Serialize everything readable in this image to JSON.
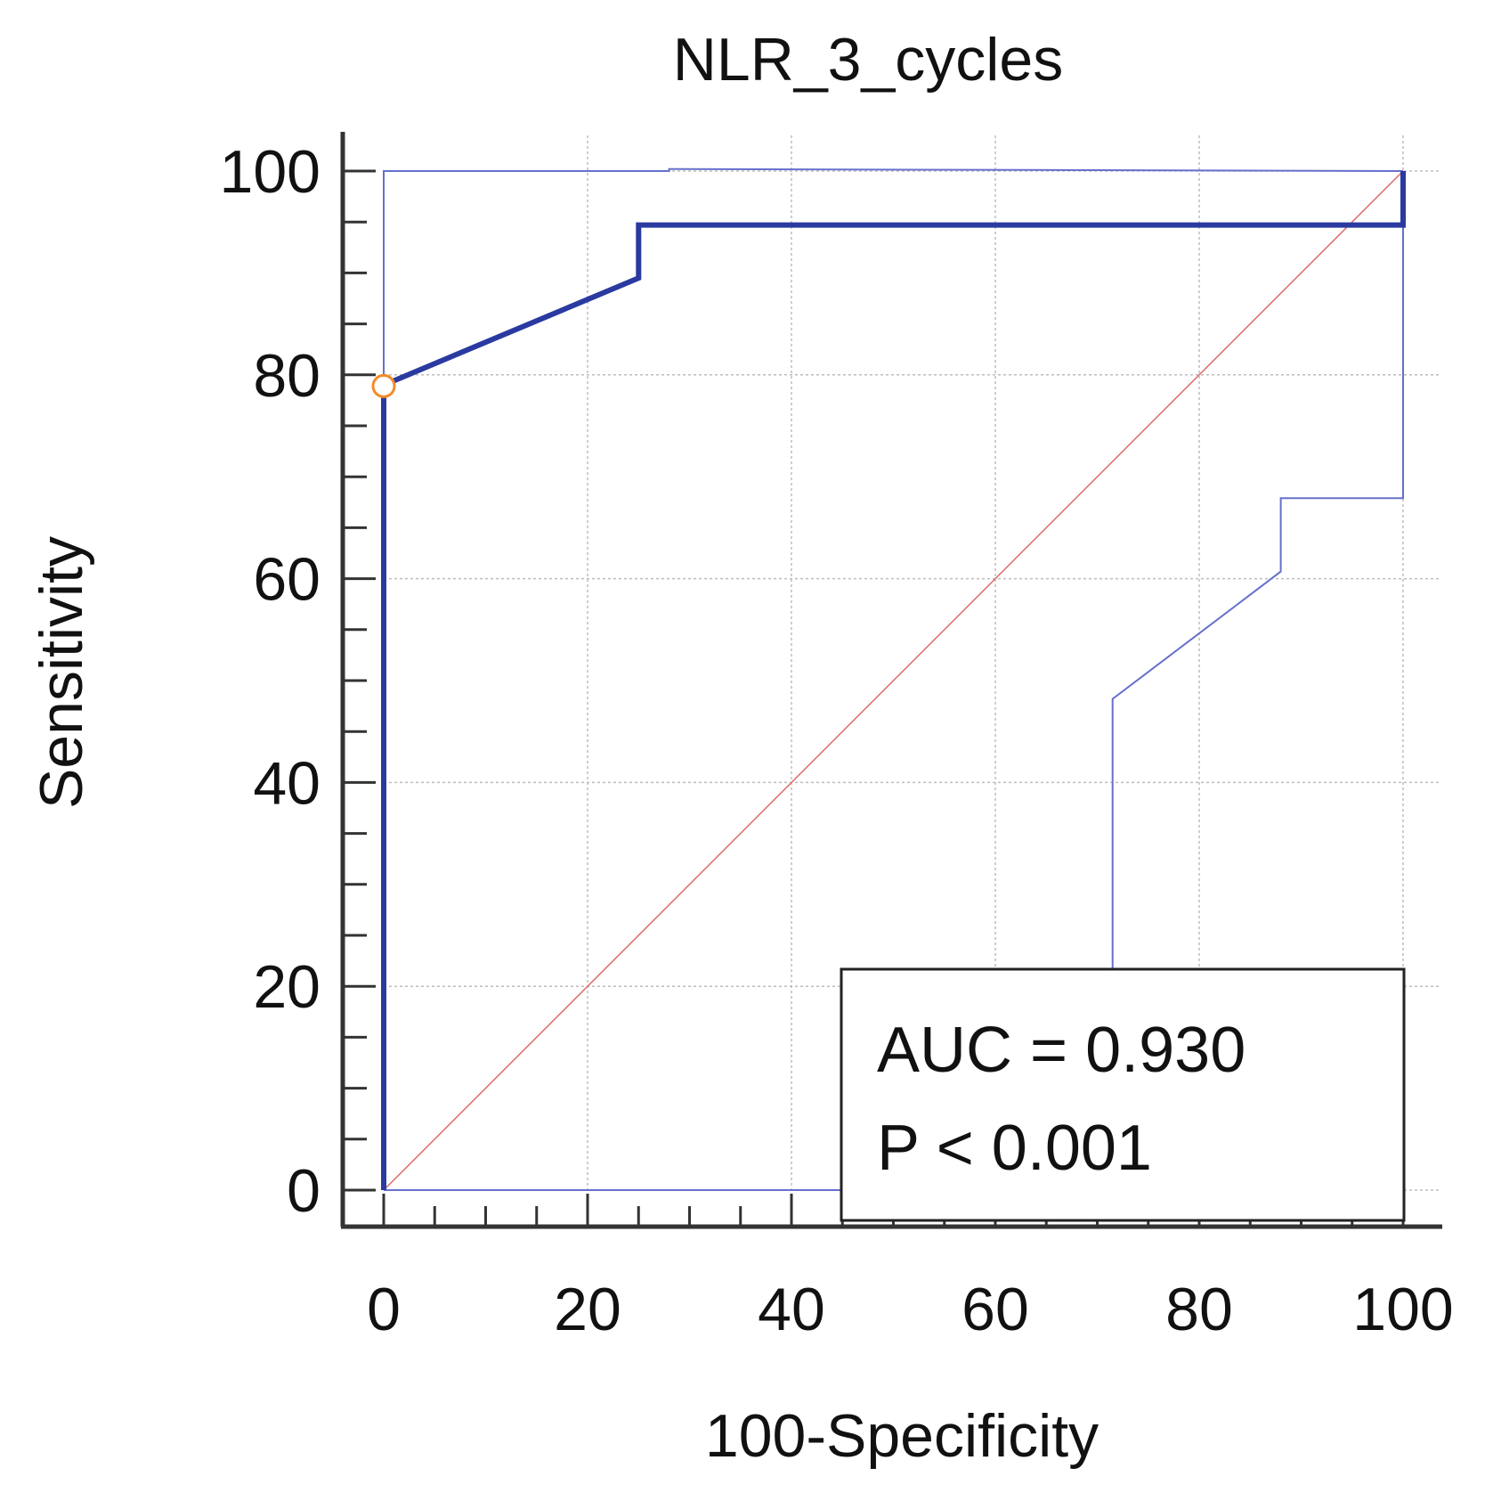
{
  "chart_data": {
    "type": "line",
    "title": "NLR_3_cycles",
    "xlabel": "100-Specificity",
    "ylabel": "Sensitivity",
    "xlim": [
      0,
      100
    ],
    "ylim": [
      0,
      100
    ],
    "xticks": [
      "0",
      "20",
      "40",
      "60",
      "80",
      "100"
    ],
    "yticks": [
      "0",
      "20",
      "40",
      "60",
      "80",
      "100"
    ],
    "grid": true,
    "colors": {
      "roc": "#2b3aa0",
      "ci": "#6670cc",
      "reference": "#e06a6a",
      "grid": "#bdbdbd",
      "axis": "#333333",
      "optimal_point": "#f28c28"
    },
    "series": [
      {
        "name": "ROC curve",
        "x": [
          0,
          0,
          0,
          25,
          25,
          100,
          100
        ],
        "y": [
          0,
          79,
          79,
          89.5,
          94.7,
          94.7,
          100
        ]
      },
      {
        "name": "Upper 95% CI",
        "x": [
          0,
          0,
          28,
          28,
          100
        ],
        "y": [
          0,
          100,
          100,
          100.2,
          100
        ]
      },
      {
        "name": "Lower 95% CI",
        "x": [
          0,
          71.5,
          71.5,
          88,
          88,
          100,
          100
        ],
        "y": [
          0,
          0,
          48.2,
          60.7,
          67.9,
          67.9,
          100
        ]
      },
      {
        "name": "Reference line",
        "x": [
          0,
          100
        ],
        "y": [
          0,
          100
        ]
      }
    ],
    "optimal_point": {
      "x": 0,
      "y": 78.9
    },
    "annotation": {
      "auc": "AUC = 0.930",
      "p": "P < 0.001"
    }
  }
}
